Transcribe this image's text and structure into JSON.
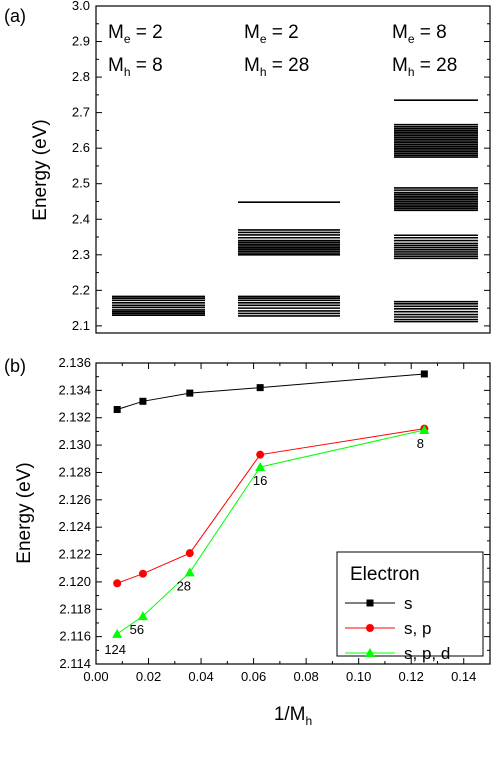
{
  "chart_data": [
    {
      "panel": "(a)",
      "type": "energy-levels",
      "ylabel": "Energy (eV)",
      "ylim": [
        2.08,
        3.0
      ],
      "yticks": [
        "2.1",
        "2.2",
        "2.3",
        "2.4",
        "2.5",
        "2.6",
        "2.7",
        "2.8",
        "2.9",
        "3.0"
      ],
      "columns": [
        {
          "header": {
            "Me_prefix": "M",
            "Me_sub": "e",
            "Me_value": " = 2",
            "Mh_prefix": "M",
            "Mh_sub": "h",
            "Mh_value": " = 8"
          },
          "levels": [
            2.13,
            2.135,
            2.14,
            2.145,
            2.152,
            2.158,
            2.165,
            2.172,
            2.178,
            2.183
          ]
        },
        {
          "header": {
            "Me_prefix": "M",
            "Me_sub": "e",
            "Me_value": " = 2",
            "Mh_prefix": "M",
            "Mh_sub": "h",
            "Mh_value": " = 28"
          },
          "levels": [
            2.128,
            2.135,
            2.142,
            2.15,
            2.158,
            2.165,
            2.172,
            2.178,
            2.183,
            2.3,
            2.305,
            2.31,
            2.315,
            2.32,
            2.325,
            2.33,
            2.335,
            2.34,
            2.348,
            2.356,
            2.363,
            2.37,
            2.448
          ]
        },
        {
          "header": {
            "Me_prefix": "M",
            "Me_sub": "e",
            "Me_value": " = 8",
            "Mh_prefix": "M",
            "Mh_sub": "h",
            "Mh_value": " = 28"
          },
          "levels": [
            2.112,
            2.118,
            2.125,
            2.132,
            2.14,
            2.148,
            2.155,
            2.162,
            2.168,
            2.29,
            2.296,
            2.302,
            2.308,
            2.314,
            2.32,
            2.326,
            2.332,
            2.34,
            2.348,
            2.355,
            2.425,
            2.43,
            2.435,
            2.44,
            2.445,
            2.45,
            2.455,
            2.46,
            2.465,
            2.47,
            2.475,
            2.482,
            2.488,
            2.575,
            2.58,
            2.585,
            2.59,
            2.595,
            2.6,
            2.605,
            2.61,
            2.615,
            2.62,
            2.625,
            2.63,
            2.635,
            2.64,
            2.645,
            2.65,
            2.655,
            2.66,
            2.666,
            2.735
          ]
        }
      ]
    },
    {
      "panel": "(b)",
      "type": "line",
      "xlabel_prefix": "1/M",
      "xlabel_sub": "h",
      "ylabel": "Energy (eV)",
      "xlim": [
        0.0,
        0.15
      ],
      "ylim": [
        2.114,
        2.136
      ],
      "xticks": [
        "0.00",
        "0.02",
        "0.04",
        "0.06",
        "0.08",
        "0.10",
        "0.12",
        "0.14"
      ],
      "yticks": [
        "2.114",
        "2.116",
        "2.118",
        "2.120",
        "2.122",
        "2.124",
        "2.126",
        "2.128",
        "2.130",
        "2.132",
        "2.134",
        "2.136"
      ],
      "x": [
        0.00806,
        0.01786,
        0.03571,
        0.0625,
        0.125
      ],
      "series": [
        {
          "name": "s",
          "color": "#000000",
          "marker": "square",
          "values": [
            2.1326,
            2.1332,
            2.1338,
            2.1342,
            2.1352
          ]
        },
        {
          "name": "s, p",
          "color": "#ff0000",
          "marker": "circle",
          "values": [
            2.1199,
            2.1206,
            2.1221,
            2.1293,
            2.1312
          ]
        },
        {
          "name": "s, p, d",
          "color": "#00ff00",
          "marker": "triangle",
          "values": [
            2.1162,
            2.1175,
            2.1207,
            2.1284,
            2.1311
          ]
        }
      ],
      "point_labels": [
        {
          "x": 0.00806,
          "y": 2.1162,
          "text": "124"
        },
        {
          "x": 0.01786,
          "y": 2.1175,
          "text": "56"
        },
        {
          "x": 0.03571,
          "y": 2.1207,
          "text": "28"
        },
        {
          "x": 0.0625,
          "y": 2.1284,
          "text": "16"
        },
        {
          "x": 0.125,
          "y": 2.1311,
          "text": "8"
        }
      ],
      "legend": {
        "title": "Electron",
        "placement": "bottom-right"
      }
    }
  ]
}
